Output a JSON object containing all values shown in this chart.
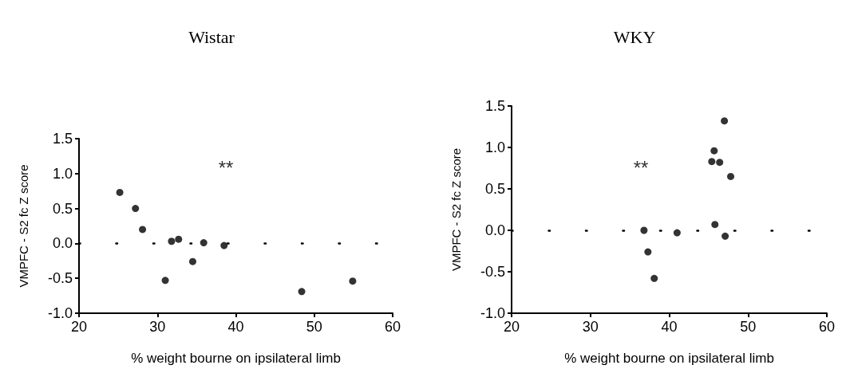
{
  "chart_data": [
    {
      "type": "scatter",
      "title": "Wistar",
      "xlabel": "% weight bourne on ipsilateral limb",
      "ylabel": "VMPFC - S2 fc Z score",
      "x": [
        25.2,
        27.2,
        28.1,
        31.0,
        31.8,
        32.7,
        34.5,
        35.9,
        38.5,
        48.4,
        54.9
      ],
      "series": [
        {
          "color": "#000000",
          "values": [
            0.73,
            0.5,
            0.2,
            -0.53,
            0.03,
            0.06,
            -0.26,
            0.01,
            -0.03,
            -0.69,
            -0.54
          ]
        }
      ],
      "xlim": [
        20,
        60
      ],
      "xticks": [
        20,
        30,
        40,
        50,
        60
      ],
      "ylim": [
        -1.0,
        1.5
      ],
      "yticks": [
        {
          "value": -1.0,
          "label": "-1.0"
        },
        {
          "value": -0.5,
          "label": "-0.5"
        },
        {
          "value": 0,
          "label": "0.0"
        },
        {
          "value": 0.5,
          "label": "0.5"
        },
        {
          "value": 1.0,
          "label": "1.0"
        },
        {
          "value": 1.5,
          "label": "1.5"
        }
      ],
      "marker": "circle",
      "grid": false,
      "ref_lines": [
        {
          "axis": "y",
          "value": 0,
          "color": "#000000",
          "line_style": "dotted"
        }
      ],
      "annotations": [
        "**"
      ]
    },
    {
      "type": "scatter",
      "title": "WKY",
      "xlabel": "% weight bourne on ipsilateral limb",
      "ylabel": "VMPFC - S2 fc Z score",
      "x": [
        47.0,
        45.7,
        45.4,
        46.4,
        47.8,
        45.8,
        47.1,
        36.8,
        37.3,
        38.1,
        41.0
      ],
      "series": [
        {
          "color": "#000000",
          "values": [
            1.32,
            0.96,
            0.83,
            0.82,
            0.65,
            0.07,
            -0.07,
            0.0,
            -0.26,
            -0.58,
            -0.03
          ]
        }
      ],
      "xlim": [
        20,
        60
      ],
      "xticks": [
        20,
        30,
        40,
        50,
        60
      ],
      "ylim": [
        -1.0,
        1.5
      ],
      "yticks": [
        {
          "value": -1.0,
          "label": "-1.0"
        },
        {
          "value": -0.5,
          "label": "-0.5"
        },
        {
          "value": 0,
          "label": "0.0"
        },
        {
          "value": 0.5,
          "label": "0.5"
        },
        {
          "value": 1.0,
          "label": "1.0"
        },
        {
          "value": 1.5,
          "label": "1.5"
        }
      ],
      "marker": "circle",
      "grid": false,
      "ref_lines": [
        {
          "axis": "y",
          "value": 0,
          "color": "#000000",
          "line_style": "dotted"
        }
      ],
      "annotations": [
        "**"
      ]
    }
  ]
}
